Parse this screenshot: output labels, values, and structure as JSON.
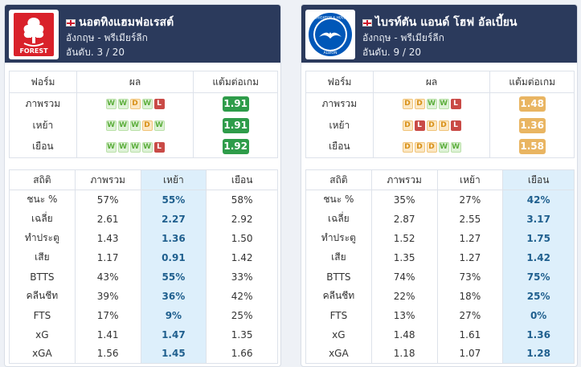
{
  "labels": {
    "form": "ฟอร์ม",
    "result": "ผล",
    "ppg": "แต้มต่อเกม",
    "stats": "สถิติ",
    "overall": "ภาพรวม",
    "home": "เหย้า",
    "away": "เยือน"
  },
  "colors": {
    "header_bg": "#2b3a5c",
    "ppg_green": "#2e9c4a",
    "ppg_amber": "#e9b562",
    "highlight": "#ddeffb"
  },
  "teams": [
    {
      "name": "นอตทิงแฮมฟอเรสต์",
      "flag": "england-flag",
      "league": "อังกฤษ - พรีเมียร์ลีก",
      "rank": "อันดับ. 3 / 20",
      "logo_text": "FOREST",
      "form": [
        {
          "label": "ภาพรวม",
          "results": [
            "W",
            "W",
            "D",
            "W",
            "L"
          ],
          "ppg": "1.91",
          "ppg_color": "green"
        },
        {
          "label": "เหย้า",
          "results": [
            "W",
            "W",
            "W",
            "D",
            "W"
          ],
          "ppg": "1.91",
          "ppg_color": "green"
        },
        {
          "label": "เยือน",
          "results": [
            "W",
            "W",
            "W",
            "W",
            "L"
          ],
          "ppg": "1.92",
          "ppg_color": "green"
        }
      ],
      "highlight_col": "home",
      "stats": [
        {
          "label": "ชนะ %",
          "overall": "57%",
          "home": "55%",
          "away": "58%"
        },
        {
          "label": "เฉลี่ย",
          "overall": "2.61",
          "home": "2.27",
          "away": "2.92"
        },
        {
          "label": "ทำประตู",
          "overall": "1.43",
          "home": "1.36",
          "away": "1.50"
        },
        {
          "label": "เสีย",
          "overall": "1.17",
          "home": "0.91",
          "away": "1.42"
        },
        {
          "label": "BTTS",
          "overall": "43%",
          "home": "55%",
          "away": "33%"
        },
        {
          "label": "คลีนชีท",
          "overall": "39%",
          "home": "36%",
          "away": "42%"
        },
        {
          "label": "FTS",
          "overall": "17%",
          "home": "9%",
          "away": "25%"
        },
        {
          "label": "xG",
          "overall": "1.41",
          "home": "1.47",
          "away": "1.35"
        },
        {
          "label": "xGA",
          "overall": "1.56",
          "home": "1.45",
          "away": "1.66"
        }
      ]
    },
    {
      "name": "ไบรท์ตัน แอนด์ โฮฟ อัลเบี้ยน",
      "flag": "england-flag",
      "league": "อังกฤษ - พรีเมียร์ลีก",
      "rank": "อันดับ. 9 / 20",
      "logo_text_top": "BRIGHTON & HOVE",
      "logo_text_bottom": "ALBION",
      "form": [
        {
          "label": "ภาพรวม",
          "results": [
            "D",
            "D",
            "W",
            "W",
            "L"
          ],
          "ppg": "1.48",
          "ppg_color": "amber"
        },
        {
          "label": "เหย้า",
          "results": [
            "D",
            "L",
            "D",
            "D",
            "L"
          ],
          "ppg": "1.36",
          "ppg_color": "amber"
        },
        {
          "label": "เยือน",
          "results": [
            "D",
            "D",
            "D",
            "W",
            "W"
          ],
          "ppg": "1.58",
          "ppg_color": "amber"
        }
      ],
      "highlight_col": "away",
      "stats": [
        {
          "label": "ชนะ %",
          "overall": "35%",
          "home": "27%",
          "away": "42%"
        },
        {
          "label": "เฉลี่ย",
          "overall": "2.87",
          "home": "2.55",
          "away": "3.17"
        },
        {
          "label": "ทำประตู",
          "overall": "1.52",
          "home": "1.27",
          "away": "1.75"
        },
        {
          "label": "เสีย",
          "overall": "1.35",
          "home": "1.27",
          "away": "1.42"
        },
        {
          "label": "BTTS",
          "overall": "74%",
          "home": "73%",
          "away": "75%"
        },
        {
          "label": "คลีนชีท",
          "overall": "22%",
          "home": "18%",
          "away": "25%"
        },
        {
          "label": "FTS",
          "overall": "13%",
          "home": "27%",
          "away": "0%"
        },
        {
          "label": "xG",
          "overall": "1.48",
          "home": "1.61",
          "away": "1.36"
        },
        {
          "label": "xGA",
          "overall": "1.18",
          "home": "1.07",
          "away": "1.28"
        }
      ]
    }
  ]
}
